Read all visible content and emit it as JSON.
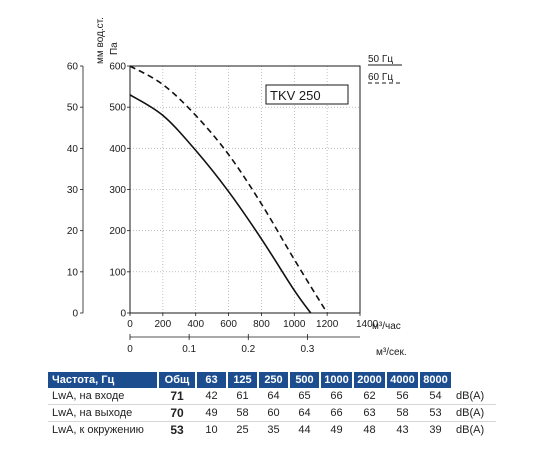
{
  "chart_data": {
    "type": "line",
    "model": "TKV 250",
    "axes": {
      "y_right_label": "Па",
      "y_left_label": "мм вод.ст.",
      "x_top_unit": "м³/час",
      "x_bottom_unit": "м³/сек.",
      "y_pa_ticks": [
        0,
        100,
        200,
        300,
        400,
        500,
        600
      ],
      "y_mm_ticks": [
        0,
        10,
        20,
        30,
        40,
        50,
        60
      ],
      "x_m3h_ticks": [
        0,
        200,
        400,
        600,
        800,
        1000,
        1200,
        1400
      ],
      "x_m3s_ticks": [
        "0",
        "0.1",
        "0.2",
        "0.3"
      ],
      "x_m3s_values": [
        0,
        0.1,
        0.2,
        0.3
      ],
      "xlim": [
        0,
        1400
      ],
      "ylim": [
        0,
        600
      ]
    },
    "legend": [
      {
        "label": "50 Гц",
        "style": "solid"
      },
      {
        "label": "60 Гц",
        "style": "dashed"
      }
    ],
    "series": [
      {
        "name": "50 Гц",
        "style": "solid",
        "x": [
          0,
          200,
          400,
          600,
          800,
          1000,
          1100
        ],
        "y": [
          530,
          480,
          395,
          295,
          180,
          55,
          0
        ]
      },
      {
        "name": "60 Гц",
        "style": "dashed",
        "x": [
          0,
          200,
          400,
          600,
          800,
          1000,
          1200
        ],
        "y": [
          600,
          555,
          480,
          385,
          265,
          130,
          0
        ]
      }
    ]
  },
  "table": {
    "header": [
      "Частота, Гц",
      "Общ",
      "63",
      "125",
      "250",
      "500",
      "1000",
      "2000",
      "4000",
      "8000"
    ],
    "rows": [
      {
        "label": "LwA, на входе",
        "total": "71",
        "values": [
          "42",
          "61",
          "64",
          "65",
          "66",
          "62",
          "56",
          "54"
        ],
        "unit": "dB(A)"
      },
      {
        "label": "LwA, на выходе",
        "total": "70",
        "values": [
          "49",
          "58",
          "60",
          "64",
          "66",
          "63",
          "58",
          "53"
        ],
        "unit": "dB(A)"
      },
      {
        "label": "LwA, к окружению",
        "total": "53",
        "values": [
          "10",
          "25",
          "35",
          "44",
          "49",
          "48",
          "43",
          "39"
        ],
        "unit": "dB(A)"
      }
    ]
  }
}
